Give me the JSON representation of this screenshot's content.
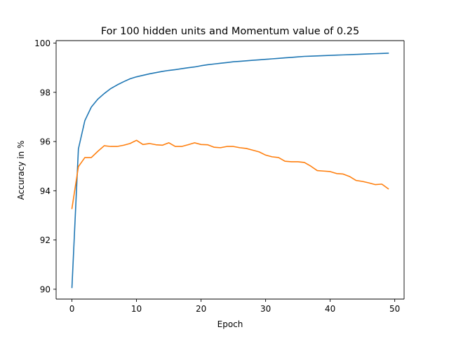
{
  "chart_data": {
    "type": "line",
    "title": "For 100 hidden units and Momentum value of 0.25",
    "xlabel": "Epoch",
    "ylabel": "Accuracy in %",
    "xlim": [
      -2.45,
      51.45
    ],
    "ylim": [
      89.6,
      100.1
    ],
    "xticks": [
      0,
      10,
      20,
      30,
      40,
      50
    ],
    "yticks": [
      90,
      92,
      94,
      96,
      98,
      100
    ],
    "x": [
      0,
      1,
      2,
      3,
      4,
      5,
      6,
      7,
      8,
      9,
      10,
      11,
      12,
      13,
      14,
      15,
      16,
      17,
      18,
      19,
      20,
      21,
      22,
      23,
      24,
      25,
      26,
      27,
      28,
      29,
      30,
      31,
      32,
      33,
      34,
      35,
      36,
      37,
      38,
      39,
      40,
      41,
      42,
      43,
      44,
      45,
      46,
      47,
      48,
      49
    ],
    "grid": false,
    "legend": "none",
    "series": [
      {
        "color": "#1f77b4",
        "values": [
          90.07,
          95.7,
          96.85,
          97.4,
          97.72,
          97.95,
          98.15,
          98.3,
          98.43,
          98.55,
          98.63,
          98.69,
          98.75,
          98.8,
          98.85,
          98.89,
          98.92,
          98.96,
          99.0,
          99.03,
          99.08,
          99.12,
          99.15,
          99.18,
          99.21,
          99.24,
          99.26,
          99.28,
          99.3,
          99.32,
          99.34,
          99.36,
          99.38,
          99.4,
          99.42,
          99.44,
          99.46,
          99.47,
          99.48,
          99.49,
          99.5,
          99.51,
          99.52,
          99.53,
          99.54,
          99.55,
          99.56,
          99.57,
          99.58,
          99.59
        ]
      },
      {
        "color": "#ff7f0e",
        "values": [
          93.28,
          94.98,
          95.35,
          95.35,
          95.6,
          95.83,
          95.8,
          95.8,
          95.85,
          95.92,
          96.05,
          95.88,
          95.92,
          95.87,
          95.85,
          95.95,
          95.8,
          95.8,
          95.87,
          95.95,
          95.88,
          95.87,
          95.77,
          95.75,
          95.8,
          95.8,
          95.75,
          95.72,
          95.65,
          95.58,
          95.45,
          95.38,
          95.35,
          95.2,
          95.18,
          95.18,
          95.15,
          95.0,
          94.82,
          94.8,
          94.78,
          94.7,
          94.68,
          94.58,
          94.42,
          94.38,
          94.32,
          94.25,
          94.27,
          94.08
        ]
      }
    ]
  }
}
